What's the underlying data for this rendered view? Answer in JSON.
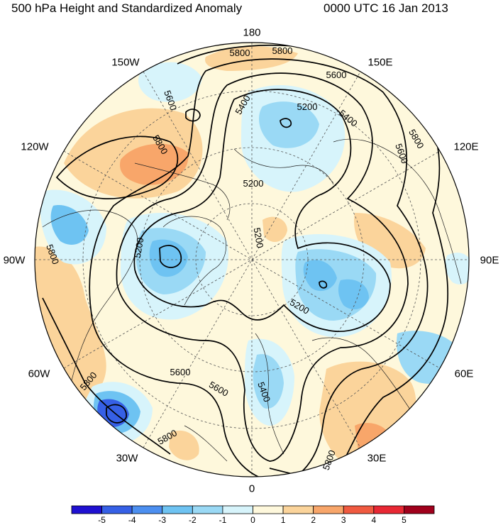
{
  "title": {
    "left": "500 hPa Height and Standardized Anomaly",
    "right": "0000 UTC 16 Jan 2013"
  },
  "longitude_labels": {
    "top": "180",
    "bottom": "0",
    "left": "90W",
    "right": "90E",
    "upper_left_outer": "120W",
    "upper_left_inner": "150W",
    "upper_right_inner": "150E",
    "upper_right_outer": "120E",
    "lower_left_outer": "60W",
    "lower_left_inner": "30W",
    "lower_right_inner": "30E",
    "lower_right_outer": "60E"
  },
  "contour_labels": [
    "5800",
    "5800",
    "5600",
    "5800",
    "5600",
    "5400",
    "5200",
    "5400",
    "5600",
    "5800",
    "5200",
    "5200",
    "5800",
    "5200",
    "5200",
    "5800",
    "5600",
    "5600",
    "5400",
    "5800",
    "5800"
  ],
  "colorbar": {
    "colors": [
      "#1f10d1",
      "#3660e6",
      "#4c8ff0",
      "#6ec3f2",
      "#9ad9f5",
      "#d7f4fb",
      "#fef8dc",
      "#fbd49b",
      "#f8a66a",
      "#f05a40",
      "#e82834",
      "#a0001c"
    ],
    "labels": [
      "-5",
      "-4",
      "-3",
      "-2",
      "-1",
      "0",
      "1",
      "2",
      "3",
      "4",
      "5"
    ]
  }
}
